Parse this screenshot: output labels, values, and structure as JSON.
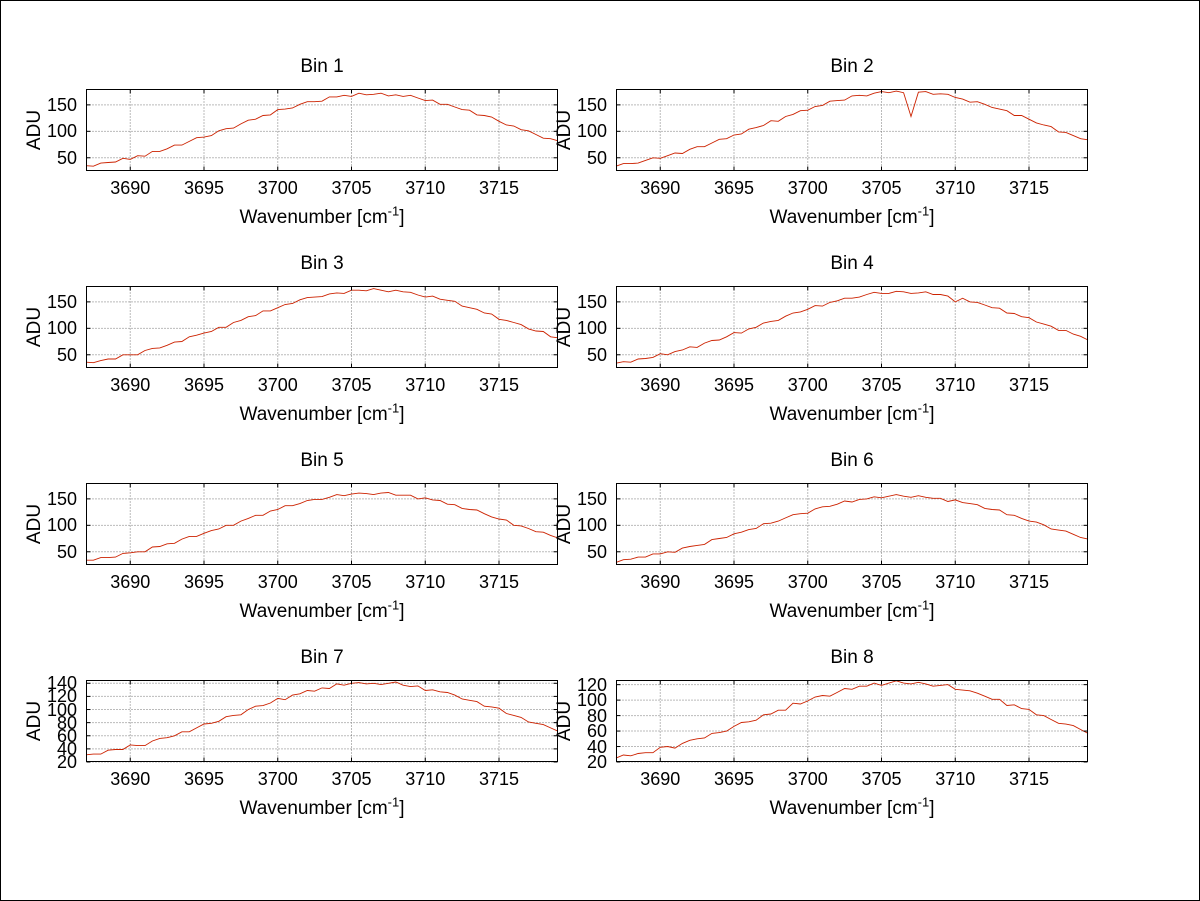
{
  "page": {
    "background": "#ffffff",
    "border_color": "#000000",
    "text_color": "#000000"
  },
  "chart_common": {
    "type": "line",
    "xlabel": "Wavenumber [cm^-1]",
    "xlabel_main": "Wavenumber [cm",
    "xlabel_sup": "-1",
    "xlabel_close": "]",
    "ylabel": "ADU",
    "xlim": [
      3687,
      3719
    ],
    "xticks": [
      3690,
      3695,
      3700,
      3705,
      3710,
      3715
    ],
    "grid": true,
    "grid_style": "dotted",
    "grid_color": "#777777",
    "axis_color": "#000000",
    "line_color": "#cc2200",
    "legend": "none",
    "x": [
      3687,
      3687.5,
      3688,
      3688.5,
      3689,
      3689.5,
      3690,
      3690.5,
      3691,
      3691.5,
      3692,
      3692.5,
      3693,
      3693.5,
      3694,
      3694.5,
      3695,
      3695.5,
      3696,
      3696.5,
      3697,
      3697.5,
      3698,
      3698.5,
      3699,
      3699.5,
      3700,
      3700.5,
      3701,
      3701.5,
      3702,
      3702.5,
      3703,
      3703.5,
      3704,
      3704.5,
      3705,
      3705.5,
      3706,
      3706.5,
      3707,
      3707.5,
      3708,
      3708.5,
      3709,
      3709.5,
      3710,
      3710.5,
      3711,
      3711.5,
      3712,
      3712.5,
      3713,
      3713.5,
      3714,
      3714.5,
      3715,
      3715.5,
      3716,
      3716.5,
      3717,
      3717.5,
      3718,
      3718.5,
      3719
    ]
  },
  "chart_data": [
    {
      "type": "line",
      "title": "Bin 1",
      "ylim": [
        25,
        180
      ],
      "yticks": [
        50,
        100,
        150
      ],
      "y": [
        35,
        34,
        40,
        41,
        42,
        49,
        47,
        54,
        53,
        62,
        62,
        67,
        74,
        74,
        81,
        88,
        89,
        92,
        101,
        105,
        106,
        114,
        121,
        123,
        130,
        131,
        141,
        142,
        144,
        151,
        156,
        156,
        157,
        165,
        165,
        168,
        166,
        172,
        169,
        170,
        172,
        167,
        169,
        166,
        168,
        163,
        158,
        159,
        151,
        151,
        146,
        141,
        140,
        131,
        130,
        127,
        119,
        112,
        110,
        103,
        101,
        94,
        87,
        86,
        82
      ]
    },
    {
      "type": "line",
      "title": "Bin 2",
      "ylim": [
        25,
        180
      ],
      "yticks": [
        50,
        100,
        150
      ],
      "y": [
        34,
        39,
        39,
        40,
        45,
        50,
        49,
        54,
        59,
        58,
        66,
        71,
        71,
        78,
        85,
        86,
        93,
        95,
        104,
        107,
        111,
        120,
        119,
        128,
        132,
        139,
        140,
        147,
        149,
        157,
        158,
        159,
        167,
        168,
        167,
        172,
        175,
        173,
        176,
        173,
        128,
        174,
        175,
        170,
        171,
        170,
        164,
        161,
        155,
        156,
        151,
        145,
        142,
        139,
        130,
        130,
        123,
        116,
        112,
        109,
        99,
        98,
        92,
        86,
        84
      ]
    },
    {
      "type": "line",
      "title": "Bin 3",
      "ylim": [
        25,
        180
      ],
      "yticks": [
        50,
        100,
        150
      ],
      "y": [
        36,
        35,
        39,
        42,
        42,
        50,
        50,
        50,
        58,
        62,
        63,
        68,
        74,
        75,
        84,
        87,
        91,
        94,
        102,
        102,
        111,
        115,
        122,
        124,
        133,
        133,
        139,
        145,
        147,
        154,
        158,
        159,
        160,
        165,
        167,
        166,
        172,
        172,
        171,
        175,
        172,
        169,
        172,
        169,
        168,
        163,
        159,
        161,
        155,
        153,
        151,
        142,
        139,
        136,
        129,
        127,
        117,
        115,
        111,
        107,
        99,
        95,
        94,
        84,
        82
      ]
    },
    {
      "type": "line",
      "title": "Bin 4",
      "ylim": [
        25,
        180
      ],
      "yticks": [
        50,
        100,
        150
      ],
      "y": [
        34,
        37,
        36,
        42,
        43,
        45,
        52,
        50,
        56,
        59,
        65,
        64,
        72,
        77,
        78,
        84,
        92,
        91,
        99,
        102,
        110,
        113,
        115,
        123,
        129,
        131,
        136,
        143,
        142,
        149,
        152,
        157,
        157,
        159,
        164,
        168,
        166,
        166,
        170,
        169,
        166,
        167,
        169,
        164,
        164,
        161,
        150,
        157,
        150,
        149,
        144,
        139,
        138,
        129,
        128,
        122,
        120,
        112,
        108,
        104,
        96,
        96,
        89,
        85,
        78
      ]
    },
    {
      "type": "line",
      "title": "Bin 5",
      "ylim": [
        25,
        180
      ],
      "yticks": [
        50,
        100,
        150
      ],
      "y": [
        34,
        34,
        39,
        39,
        40,
        47,
        48,
        50,
        50,
        59,
        60,
        65,
        66,
        74,
        79,
        79,
        85,
        90,
        93,
        100,
        100,
        108,
        113,
        119,
        119,
        127,
        130,
        137,
        137,
        141,
        147,
        149,
        149,
        153,
        158,
        156,
        159,
        161,
        160,
        158,
        161,
        162,
        157,
        157,
        157,
        150,
        152,
        148,
        147,
        140,
        139,
        132,
        130,
        129,
        122,
        116,
        112,
        110,
        100,
        99,
        94,
        88,
        87,
        81,
        76
      ]
    },
    {
      "type": "line",
      "title": "Bin 6",
      "ylim": [
        25,
        180
      ],
      "yticks": [
        50,
        100,
        150
      ],
      "y": [
        30,
        35,
        36,
        40,
        40,
        46,
        46,
        50,
        49,
        57,
        60,
        62,
        64,
        73,
        75,
        77,
        84,
        87,
        92,
        94,
        103,
        104,
        108,
        114,
        120,
        122,
        123,
        131,
        135,
        136,
        140,
        146,
        144,
        149,
        150,
        154,
        152,
        155,
        158,
        155,
        153,
        156,
        153,
        151,
        151,
        145,
        148,
        143,
        141,
        139,
        132,
        130,
        129,
        120,
        119,
        113,
        108,
        106,
        101,
        93,
        91,
        89,
        83,
        77,
        74
      ]
    },
    {
      "type": "line",
      "title": "Bin 7",
      "ylim": [
        20,
        145
      ],
      "yticks": [
        20,
        40,
        60,
        80,
        100,
        120,
        140
      ],
      "y": [
        31,
        32,
        32,
        38,
        39,
        39,
        46,
        45,
        45,
        52,
        56,
        57,
        60,
        66,
        66,
        72,
        78,
        79,
        82,
        89,
        91,
        92,
        100,
        105,
        106,
        110,
        117,
        115,
        122,
        124,
        129,
        128,
        133,
        132,
        139,
        137,
        140,
        141,
        139,
        140,
        138,
        140,
        142,
        137,
        135,
        136,
        129,
        130,
        127,
        126,
        122,
        116,
        114,
        112,
        105,
        104,
        102,
        94,
        91,
        88,
        81,
        79,
        77,
        72,
        67
      ]
    },
    {
      "type": "line",
      "title": "Bin 8",
      "ylim": [
        20,
        126
      ],
      "yticks": [
        20,
        40,
        60,
        80,
        100,
        120
      ],
      "y": [
        25,
        29,
        28,
        31,
        32,
        32,
        39,
        40,
        38,
        44,
        48,
        50,
        51,
        57,
        58,
        60,
        66,
        71,
        72,
        74,
        81,
        82,
        87,
        87,
        96,
        95,
        99,
        104,
        106,
        105,
        110,
        115,
        114,
        118,
        118,
        122,
        119,
        122,
        125,
        122,
        121,
        123,
        121,
        118,
        119,
        120,
        114,
        113,
        112,
        109,
        105,
        101,
        101,
        93,
        94,
        89,
        88,
        81,
        80,
        75,
        70,
        69,
        67,
        62,
        57
      ]
    }
  ]
}
